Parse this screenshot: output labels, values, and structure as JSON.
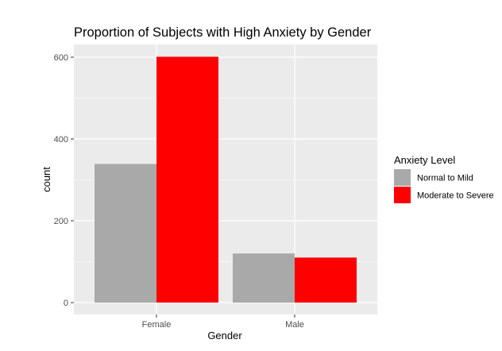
{
  "chart_data": {
    "type": "bar",
    "title": "Proportion of Subjects with High Anxiety by Gender",
    "xlabel": "Gender",
    "ylabel": "count",
    "categories": [
      "Female",
      "Male"
    ],
    "series": [
      {
        "name": "Normal to Mild",
        "color": "#A9A9A9",
        "values": [
          339,
          120
        ]
      },
      {
        "name": "Moderate to Severe",
        "color": "#FF0000",
        "values": [
          601,
          110
        ]
      }
    ],
    "ylim": [
      0,
      630
    ],
    "yticks": [
      0,
      200,
      400,
      600
    ],
    "grid": true,
    "legend": {
      "title": "Anxiety Level",
      "position": "right"
    },
    "colors": {
      "panel_background": "#EBEBEB",
      "grid_line": "#FFFFFF"
    }
  }
}
